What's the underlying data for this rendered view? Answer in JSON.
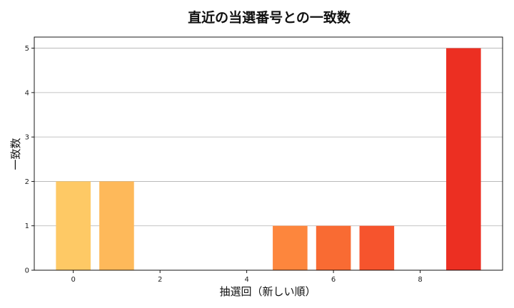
{
  "chart_data": {
    "type": "bar",
    "title": "直近の当選番号との一致数",
    "xlabel": "抽選回（新しい順）",
    "ylabel": "一致数",
    "x": [
      0,
      1,
      2,
      3,
      4,
      5,
      6,
      7,
      8,
      9
    ],
    "values": [
      2,
      2,
      0,
      0,
      0,
      1,
      1,
      1,
      0,
      5
    ],
    "xticks": [
      0,
      2,
      4,
      6,
      8
    ],
    "yticks": [
      0,
      1,
      2,
      3,
      4,
      5
    ],
    "xlim": [
      -0.9,
      9.9
    ],
    "ylim": [
      0,
      5.25
    ],
    "grid": "y",
    "colors": [
      "#fec965",
      "#feb95a",
      "#fea84f",
      "#fd9744",
      "#fc853c",
      "#fd863d",
      "#f96b33",
      "#f6542d",
      "#f03e28",
      "#ec2f22"
    ]
  }
}
